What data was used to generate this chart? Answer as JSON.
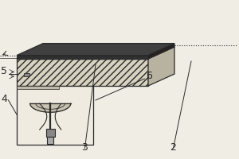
{
  "bg_color": "#f0ede4",
  "lc": "#2a2a2a",
  "label_fs": 9,
  "body_facecolor": "#d8d2c0",
  "body_top_facecolor": "#c8c2b0",
  "body_right_facecolor": "#b8b2a0",
  "cloth_front_color": "#303030",
  "cloth_top_color": "#404040",
  "cloth_right_color": "#282020",
  "house_facecolor": "#f0ebe0",
  "plug_color": "#888888",
  "plug2_color": "#aaaaaa",
  "bell_fill": "#c8c2b0"
}
